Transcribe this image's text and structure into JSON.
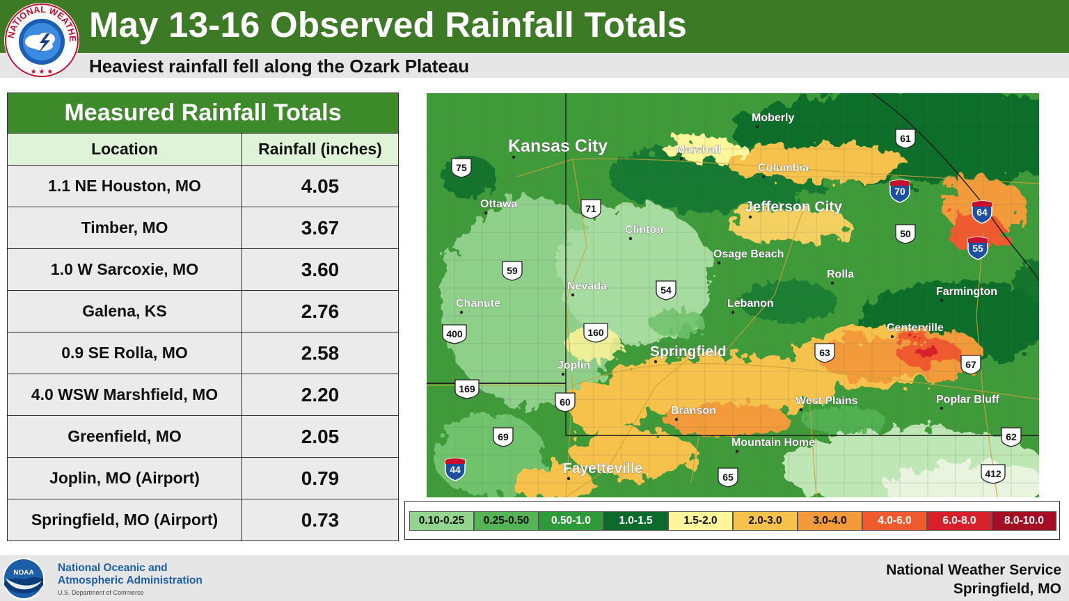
{
  "header": {
    "title": "May 13-16 Observed Rainfall Totals",
    "subtitle": "Heaviest rainfall fell along the Ozark Plateau",
    "logo_text": "NATIONAL WEATHER SERVICE"
  },
  "table": {
    "title": "Measured Rainfall Totals",
    "columns": [
      "Location",
      "Rainfall (inches)"
    ],
    "rows": [
      {
        "location": "1.1 NE Houston, MO",
        "rainfall": "4.05"
      },
      {
        "location": "Timber, MO",
        "rainfall": "3.67"
      },
      {
        "location": "1.0 W Sarcoxie, MO",
        "rainfall": "3.60"
      },
      {
        "location": "Galena, KS",
        "rainfall": "2.76"
      },
      {
        "location": "0.9 SE Rolla, MO",
        "rainfall": "2.58"
      },
      {
        "location": "4.0 WSW Marshfield, MO",
        "rainfall": "2.20"
      },
      {
        "location": "Greenfield, MO",
        "rainfall": "2.05"
      },
      {
        "location": "Joplin, MO (Airport)",
        "rainfall": "0.79"
      },
      {
        "location": "Springfield, MO (Airport)",
        "rainfall": "0.73"
      }
    ]
  },
  "map": {
    "cities": [
      {
        "name": "Kansas City",
        "size": "large"
      },
      {
        "name": "Moberly",
        "size": "small"
      },
      {
        "name": "Marshall",
        "size": "small"
      },
      {
        "name": "Columbia",
        "size": "small"
      },
      {
        "name": "Ottawa",
        "size": "small"
      },
      {
        "name": "Jefferson City",
        "size": "medium"
      },
      {
        "name": "Clinton",
        "size": "small"
      },
      {
        "name": "Osage Beach",
        "size": "small"
      },
      {
        "name": "Rolla",
        "size": "small"
      },
      {
        "name": "Nevada",
        "size": "small"
      },
      {
        "name": "Farmington",
        "size": "small"
      },
      {
        "name": "Chanute",
        "size": "small"
      },
      {
        "name": "Lebanon",
        "size": "small"
      },
      {
        "name": "Centerville",
        "size": "small"
      },
      {
        "name": "Springfield",
        "size": "medium"
      },
      {
        "name": "Joplin",
        "size": "small"
      },
      {
        "name": "Branson",
        "size": "small"
      },
      {
        "name": "West Plains",
        "size": "small"
      },
      {
        "name": "Poplar Bluff",
        "size": "small"
      },
      {
        "name": "Mountain Home",
        "size": "small"
      },
      {
        "name": "Fayetteville",
        "size": "medium"
      }
    ],
    "routes": [
      {
        "number": "75",
        "type": "us"
      },
      {
        "number": "61",
        "type": "us"
      },
      {
        "number": "70",
        "type": "interstate"
      },
      {
        "number": "71",
        "type": "us"
      },
      {
        "number": "64",
        "type": "interstate"
      },
      {
        "number": "50",
        "type": "us"
      },
      {
        "number": "55",
        "type": "interstate"
      },
      {
        "number": "59",
        "type": "us"
      },
      {
        "number": "54",
        "type": "us"
      },
      {
        "number": "400",
        "type": "us"
      },
      {
        "number": "160",
        "type": "us"
      },
      {
        "number": "63",
        "type": "us"
      },
      {
        "number": "67",
        "type": "us"
      },
      {
        "number": "169",
        "type": "us"
      },
      {
        "number": "60",
        "type": "us"
      },
      {
        "number": "69",
        "type": "us"
      },
      {
        "number": "62",
        "type": "us"
      },
      {
        "number": "44",
        "type": "interstate"
      },
      {
        "number": "65",
        "type": "us"
      },
      {
        "number": "412",
        "type": "us"
      }
    ]
  },
  "legend": [
    {
      "label": "0.10-0.25",
      "color": "#93d58e",
      "text_color": "#111111"
    },
    {
      "label": "0.25-0.50",
      "color": "#55b556",
      "text_color": "#111111"
    },
    {
      "label": "0.50-1.0",
      "color": "#2e9a3a",
      "text_color": "#ffffff"
    },
    {
      "label": "1.0-1.5",
      "color": "#0c6b2b",
      "text_color": "#ffffff"
    },
    {
      "label": "1.5-2.0",
      "color": "#fff59a",
      "text_color": "#111111"
    },
    {
      "label": "2.0-3.0",
      "color": "#f6c24c",
      "text_color": "#111111"
    },
    {
      "label": "3.0-4.0",
      "color": "#f39a3b",
      "text_color": "#111111"
    },
    {
      "label": "4.0-6.0",
      "color": "#ef5a2f",
      "text_color": "#ffffff"
    },
    {
      "label": "6.0-8.0",
      "color": "#d8202a",
      "text_color": "#ffffff"
    },
    {
      "label": "8.0-10.0",
      "color": "#a50f24",
      "text_color": "#ffffff"
    }
  ],
  "footer": {
    "noaa_line1": "National Oceanic and",
    "noaa_line2": "Atmospheric Administration",
    "noaa_dept": "U.S. Department of Commerce",
    "noaa_logo_text": "NOAA",
    "office_line1": "National Weather Service",
    "office_line2": "Springfield, MO"
  }
}
